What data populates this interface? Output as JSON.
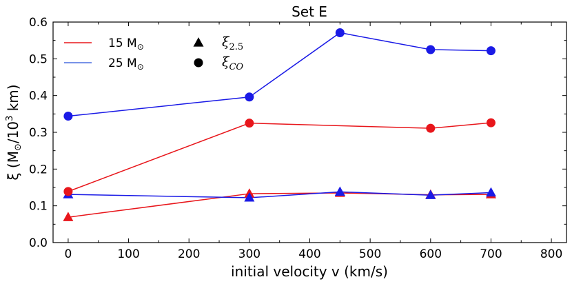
{
  "chart_data": {
    "type": "line",
    "title": "Set E",
    "xlabel": "initial velocity v (km/s)",
    "ylabel": {
      "prefix": "ξ (M",
      "sun_symbol": "⊙",
      "mid": "/10",
      "exponent": "3",
      "suffix": " km)"
    },
    "xlim": [
      -25,
      825
    ],
    "ylim": [
      0.0,
      0.6
    ],
    "xticks": [
      0,
      100,
      200,
      300,
      400,
      500,
      600,
      700,
      800
    ],
    "xtick_labels": [
      "0",
      "100",
      "200",
      "300",
      "400",
      "500",
      "600",
      "700",
      "800"
    ],
    "yticks": [
      0.0,
      0.1,
      0.2,
      0.3,
      0.4,
      0.5,
      0.6
    ],
    "ytick_labels": [
      "0.0",
      "0.1",
      "0.2",
      "0.3",
      "0.4",
      "0.5",
      "0.6"
    ],
    "grid": false,
    "series": [
      {
        "name": "15 M⊙ ξ2.5",
        "mass": "15",
        "color": "#e8161b",
        "marker": "triangle",
        "x": [
          0,
          300,
          450,
          600,
          700
        ],
        "values": [
          0.069,
          0.133,
          0.135,
          0.13,
          0.131
        ]
      },
      {
        "name": "25 M⊙ ξ2.5",
        "mass": "25",
        "color": "#1a1ae6",
        "marker": "triangle",
        "x": [
          0,
          300,
          450,
          600,
          700
        ],
        "values": [
          0.131,
          0.122,
          0.138,
          0.129,
          0.136
        ]
      },
      {
        "name": "15 M⊙ ξCO",
        "mass": "15",
        "color": "#e8161b",
        "marker": "circle",
        "x": [
          0,
          300,
          600,
          700
        ],
        "values": [
          0.139,
          0.325,
          0.311,
          0.326
        ]
      },
      {
        "name": "25 M⊙ ξCO",
        "mass": "25",
        "color": "#1a1ae6",
        "marker": "circle",
        "x": [
          0,
          300,
          450,
          600,
          700
        ],
        "values": [
          0.344,
          0.396,
          0.571,
          0.525,
          0.522
        ]
      }
    ],
    "legend": {
      "placement": "top-left",
      "lines": [
        {
          "label": "15 M",
          "sun": "⊙",
          "color": "#e8161b",
          "legend_line_color": "#e8161b"
        },
        {
          "label": "25 M",
          "sun": "⊙",
          "color": "#1a1ae6",
          "legend_line_color": "#4a6fe0"
        }
      ],
      "markers": [
        {
          "symbol": "ξ",
          "subscript": "2.5",
          "marker": "triangle"
        },
        {
          "symbol": "ξ",
          "subscript": "CO",
          "marker": "circle"
        }
      ]
    }
  }
}
